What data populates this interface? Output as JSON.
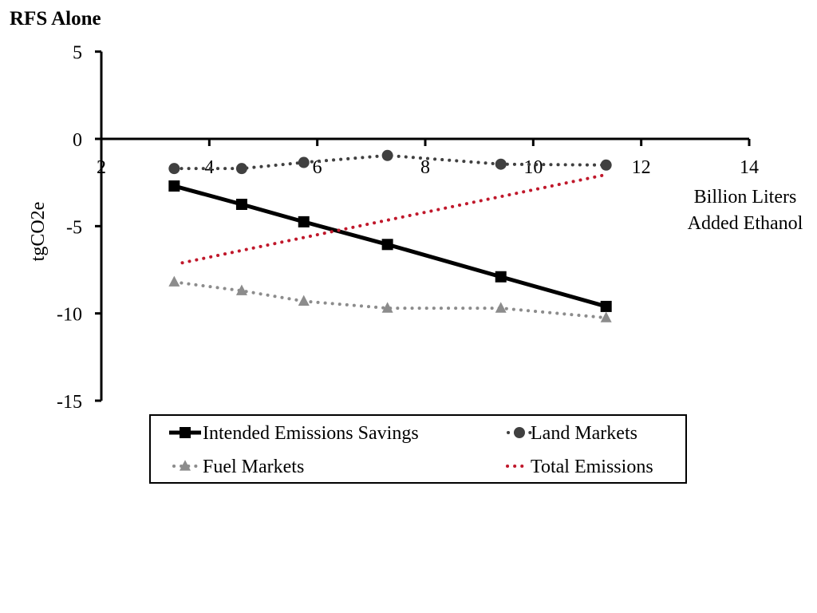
{
  "chart_data": {
    "type": "line",
    "title": "RFS Alone",
    "xlabel": [
      "Billion Liters",
      "Added Ethanol"
    ],
    "ylabel": "tgCO2e",
    "xlim": [
      2,
      14
    ],
    "ylim": [
      -15,
      5
    ],
    "x_ticks": [
      2,
      4,
      6,
      8,
      10,
      12,
      14
    ],
    "y_ticks": [
      5,
      0,
      -5,
      -10,
      -15
    ],
    "series": [
      {
        "name": "Intended Emissions Savings",
        "marker": "square",
        "line": "solid",
        "color": "#000000",
        "x": [
          3.35,
          4.6,
          5.75,
          7.3,
          9.4,
          11.35
        ],
        "y": [
          -2.7,
          -3.75,
          -4.75,
          -6.05,
          -7.9,
          -9.6
        ]
      },
      {
        "name": "Land Markets",
        "marker": "circle",
        "line": "dotted",
        "color": "#404040",
        "x": [
          3.35,
          4.6,
          5.75,
          7.3,
          9.4,
          11.35
        ],
        "y": [
          -1.7,
          -1.7,
          -1.35,
          -0.95,
          -1.45,
          -1.5
        ]
      },
      {
        "name": "Fuel Markets",
        "marker": "triangle",
        "line": "dotted",
        "color": "#8c8c8c",
        "x": [
          3.35,
          4.6,
          5.75,
          7.3,
          9.4,
          11.35
        ],
        "y": [
          -8.2,
          -8.7,
          -9.3,
          -9.7,
          -9.7,
          -10.25
        ]
      },
      {
        "name": "Total Emissions",
        "marker": "none",
        "line": "dotted",
        "color": "#c0182b",
        "x": [
          3.5,
          11.35
        ],
        "y": [
          -7.1,
          -2.05
        ]
      }
    ],
    "legend": {
      "position": "bottom",
      "order": [
        "Intended Emissions Savings",
        "Land Markets",
        "Fuel Markets",
        "Total Emissions"
      ]
    },
    "grid": false
  }
}
